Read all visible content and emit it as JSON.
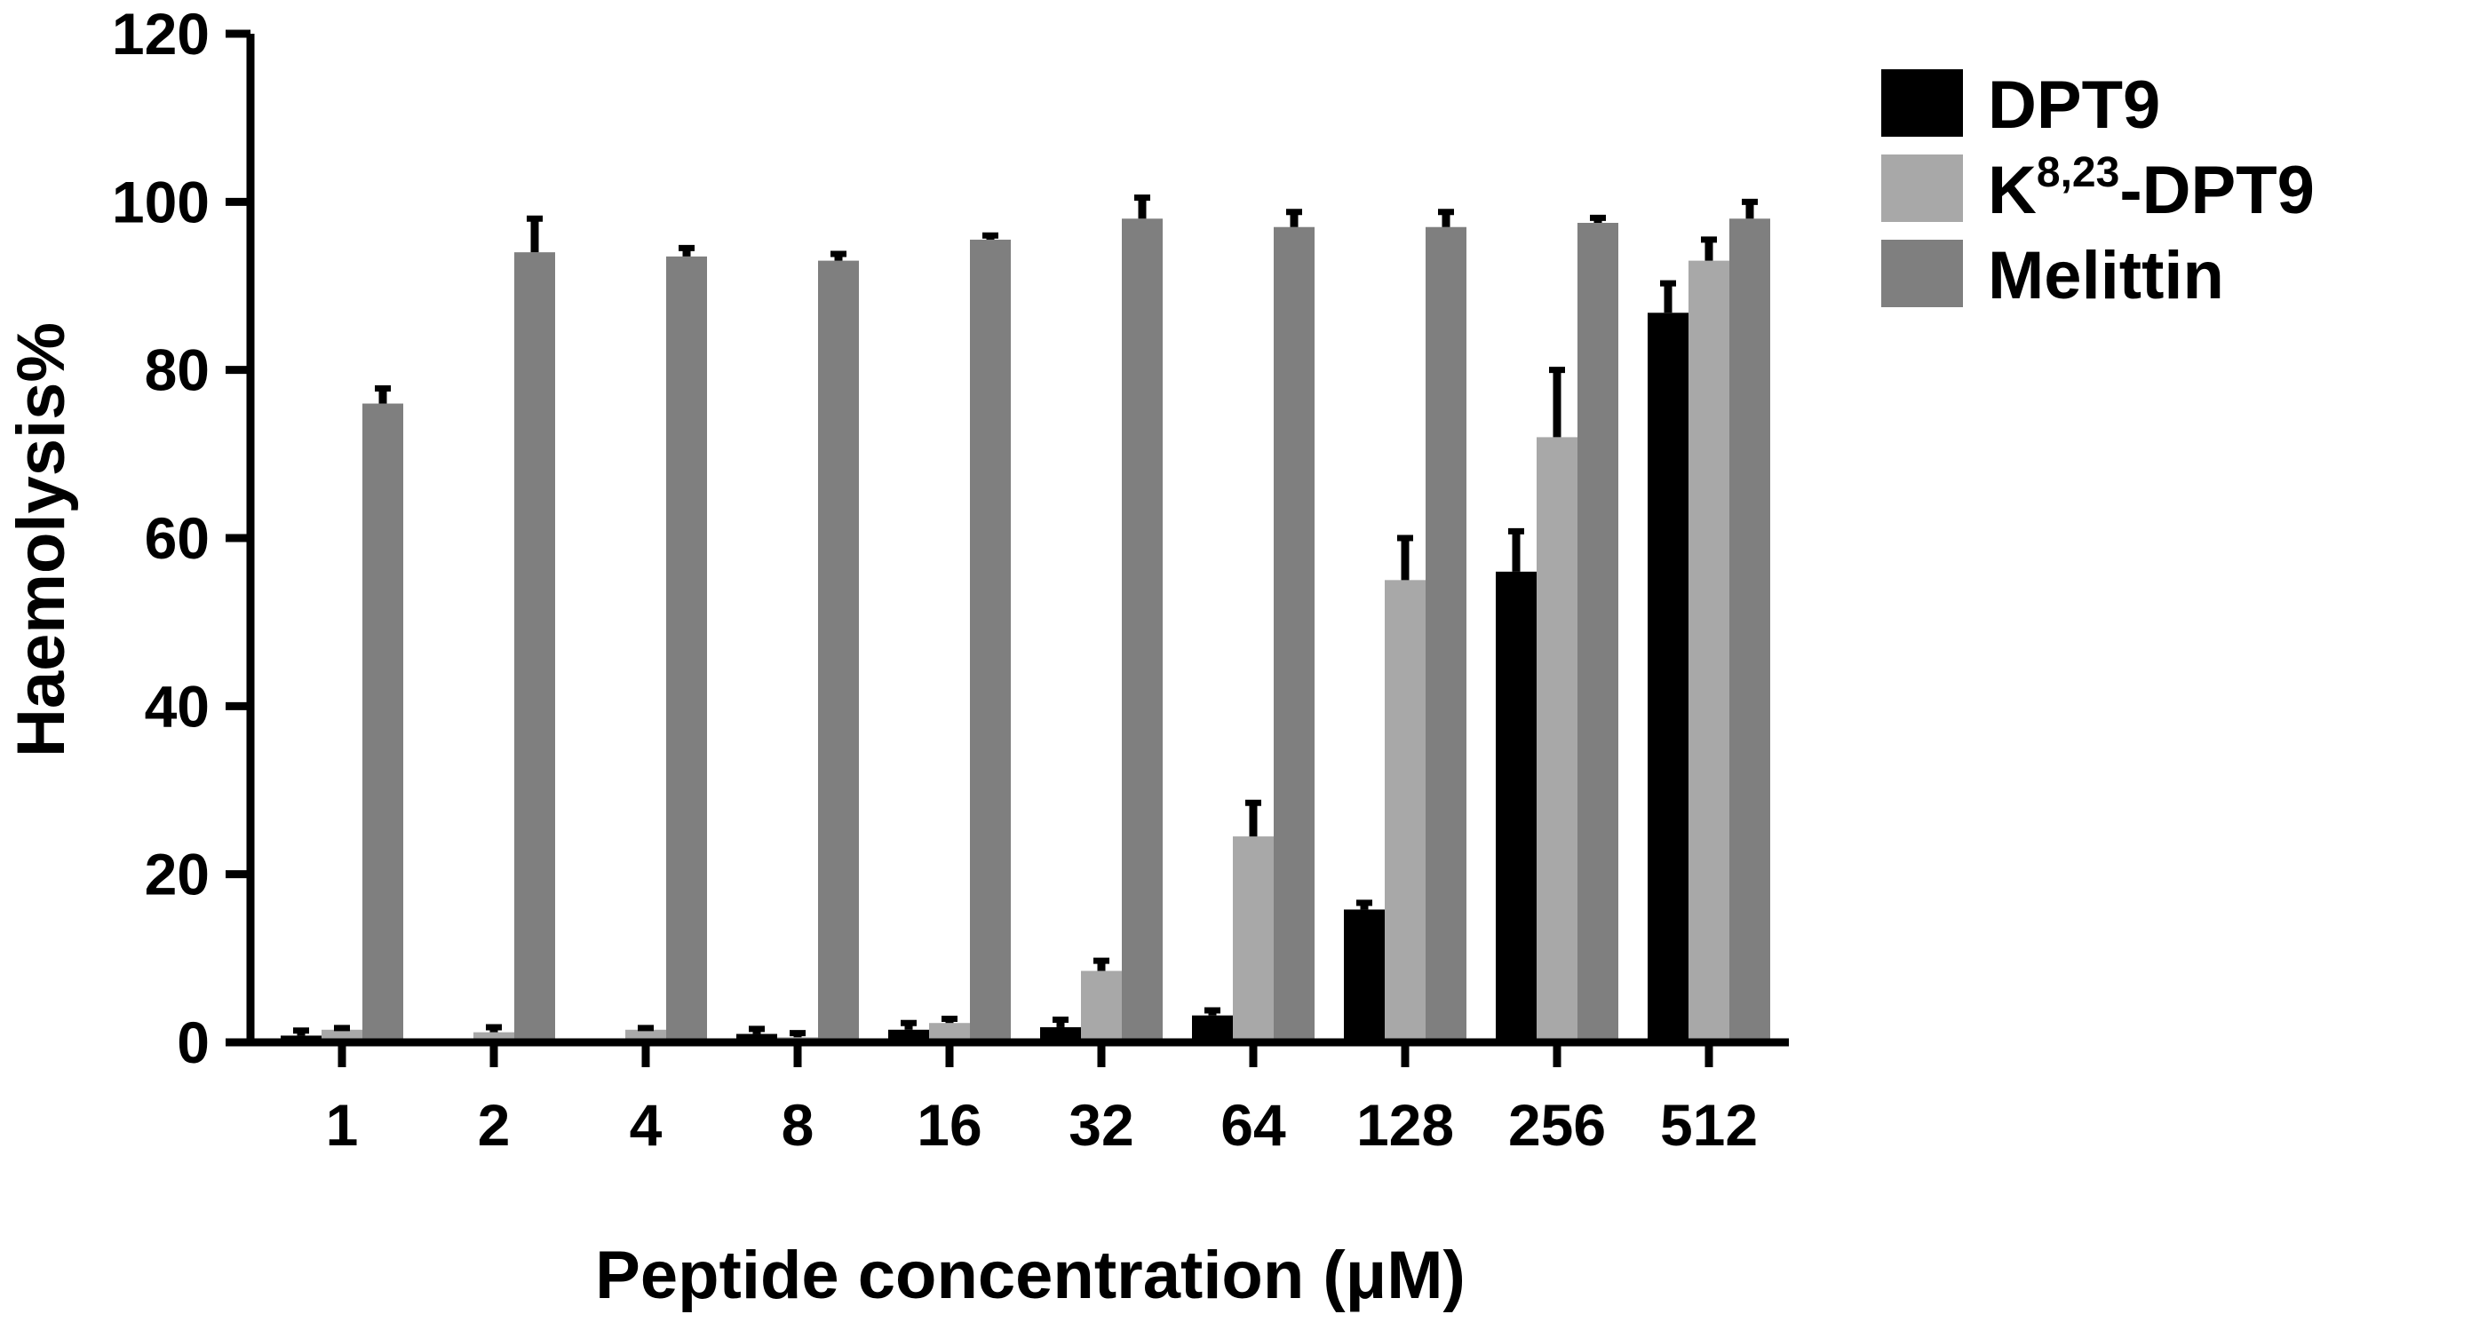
{
  "chart_data": {
    "type": "bar",
    "xlabel": "Peptide concentration (μM)",
    "ylabel": "Haemolysis%",
    "ylim": [
      0,
      120
    ],
    "yticks": [
      0,
      20,
      40,
      60,
      80,
      100,
      120
    ],
    "categories": [
      "1",
      "2",
      "4",
      "8",
      "16",
      "32",
      "64",
      "128",
      "256",
      "512"
    ],
    "grid": false,
    "legend_position": "top-right",
    "series": [
      {
        "name": "DPT9",
        "name_parts": {
          "base": "DPT9",
          "sup": "",
          "suffix": ""
        },
        "color": "#000000",
        "values": [
          0.8,
          0,
          0,
          1.0,
          1.5,
          1.8,
          3.2,
          15.8,
          56,
          86.8
        ],
        "errors": [
          0.6,
          0,
          0,
          0.6,
          0.8,
          0.9,
          0.6,
          0.8,
          4.8,
          3.5
        ]
      },
      {
        "name": "K8,23-DPT9",
        "name_parts": {
          "base": "K",
          "sup": "8,23",
          "suffix": "-DPT9"
        },
        "color": "#a8a8a8",
        "values": [
          1.5,
          1.2,
          1.5,
          0.6,
          2.3,
          8.5,
          24.5,
          55,
          72,
          93
        ],
        "errors": [
          0.2,
          0.6,
          0.2,
          0.5,
          0.5,
          1.2,
          4.0,
          5.0,
          8.0,
          2.5
        ]
      },
      {
        "name": "Melittin",
        "name_parts": {
          "base": "Melittin",
          "sup": "",
          "suffix": ""
        },
        "color": "#7f7f7f",
        "values": [
          76,
          94,
          93.5,
          93,
          95.5,
          98,
          97,
          97,
          97.5,
          98
        ],
        "errors": [
          1.8,
          4.0,
          1.0,
          0.8,
          0.5,
          2.5,
          1.8,
          1.8,
          0.6,
          2.0
        ]
      }
    ]
  }
}
